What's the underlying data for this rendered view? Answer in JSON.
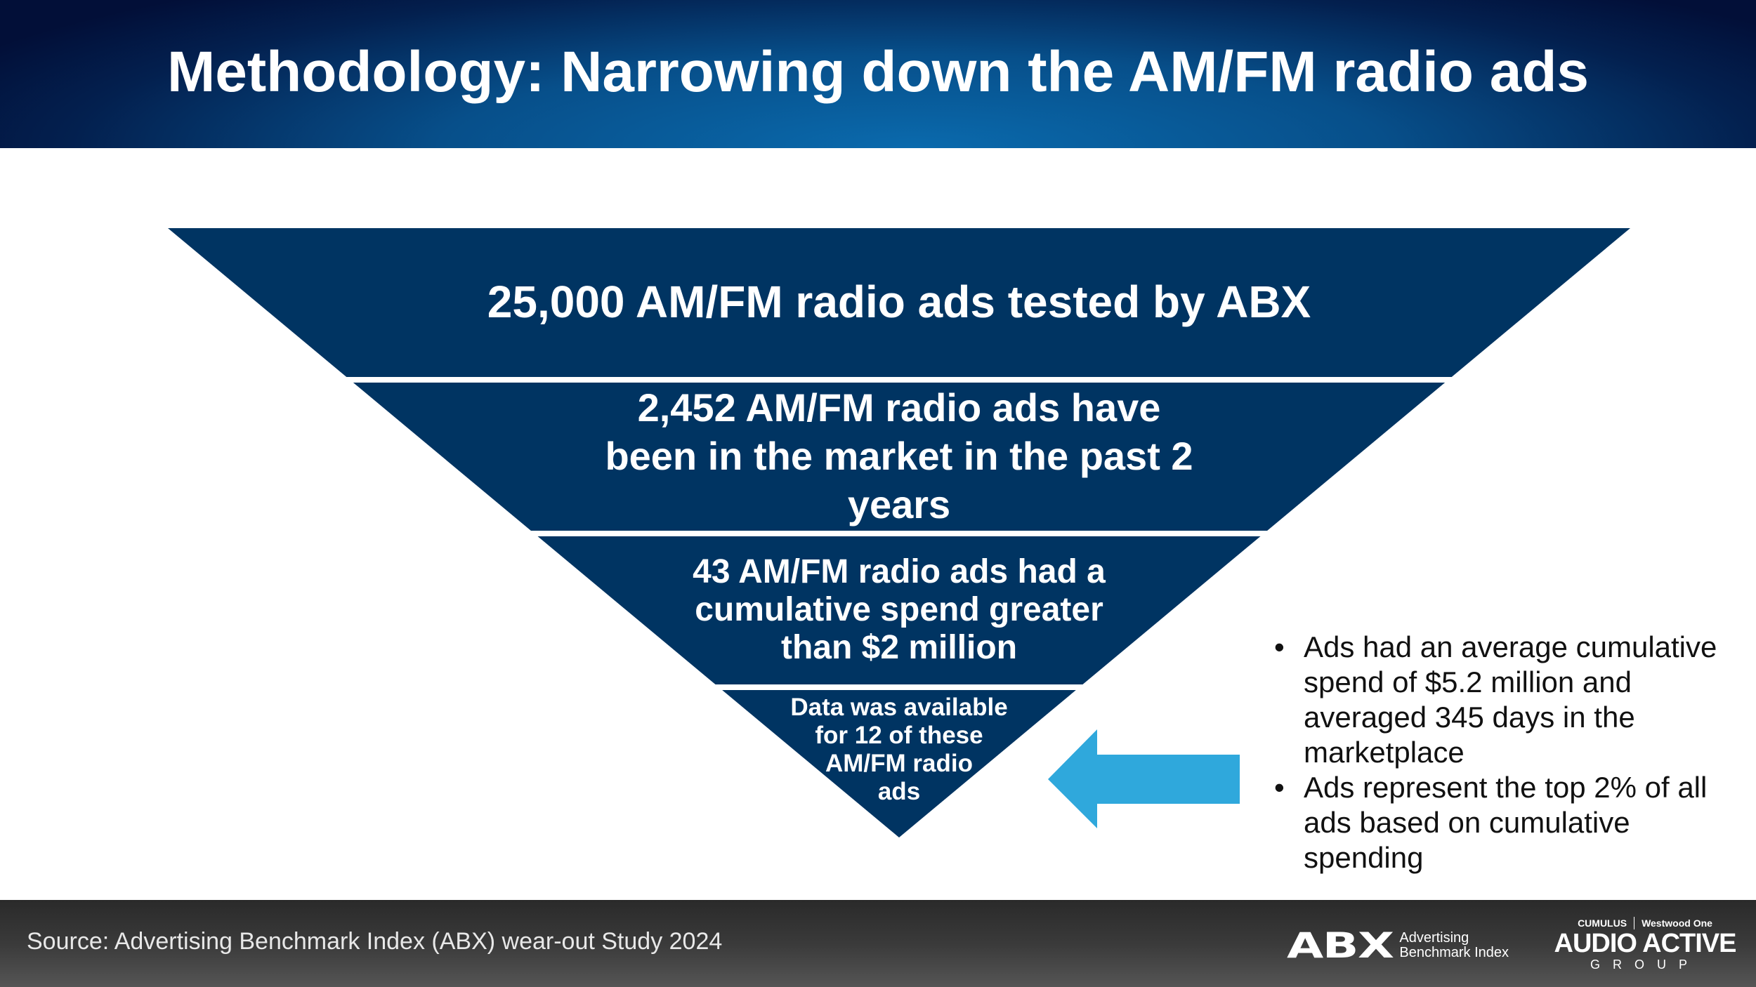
{
  "header": {
    "title": "Methodology: Narrowing down the AM/FM radio ads"
  },
  "funnel": {
    "tiers": [
      {
        "lines": [
          "25,000 AM/FM radio ads tested by ABX"
        ]
      },
      {
        "lines": [
          "2,452 AM/FM radio ads have",
          "been in the market in the past 2",
          "years"
        ]
      },
      {
        "lines": [
          "43 AM/FM radio ads had a",
          "cumulative spend greater",
          "than $2 million"
        ]
      },
      {
        "lines": [
          "Data was available",
          "for 12 of these",
          "AM/FM radio",
          "ads"
        ]
      }
    ],
    "fill_color": "#003462",
    "arrow_color": "#2fa8dc",
    "arrow_icon": "arrow-left"
  },
  "bullets": [
    {
      "marker": "•",
      "text": "Ads had an average cumulative spend of $5.2 million and averaged 345 days in the marketplace"
    },
    {
      "marker": "•",
      "text": "Ads represent the top 2% of all ads based on cumulative spending"
    }
  ],
  "footer": {
    "source": "Source: Advertising Benchmark Index (ABX) wear-out Study 2024",
    "abx_logo": {
      "mark": "ABX",
      "line1": "Advertising",
      "line2": "Benchmark Index"
    },
    "aag_logo": {
      "cumulus": "CUMULUS",
      "westwood": "Westwood One",
      "main": "AUDIO ACTIVE",
      "sub": "GROUP"
    }
  }
}
